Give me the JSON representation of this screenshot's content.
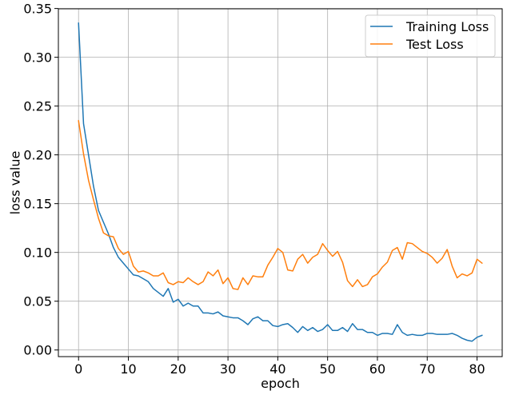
{
  "chart_data": {
    "type": "line",
    "title": "",
    "xlabel": "epoch",
    "ylabel": "loss value",
    "xlim": [
      -4.05,
      85.05
    ],
    "ylim": [
      -0.0068,
      0.3497
    ],
    "xticks": [
      0,
      10,
      20,
      30,
      40,
      50,
      60,
      70,
      80
    ],
    "xtick_labels": [
      "0",
      "10",
      "20",
      "30",
      "40",
      "50",
      "60",
      "70",
      "80"
    ],
    "yticks": [
      0.0,
      0.05,
      0.1,
      0.15,
      0.2,
      0.25,
      0.3,
      0.35
    ],
    "ytick_labels": [
      "0.00",
      "0.05",
      "0.10",
      "0.15",
      "0.20",
      "0.25",
      "0.30",
      "0.35"
    ],
    "grid": true,
    "legend_position": "top-right",
    "x": [
      0,
      1,
      2,
      3,
      4,
      5,
      6,
      7,
      8,
      9,
      10,
      11,
      12,
      13,
      14,
      15,
      16,
      17,
      18,
      19,
      20,
      21,
      22,
      23,
      24,
      25,
      26,
      27,
      28,
      29,
      30,
      31,
      32,
      33,
      34,
      35,
      36,
      37,
      38,
      39,
      40,
      41,
      42,
      43,
      44,
      45,
      46,
      47,
      48,
      49,
      50,
      51,
      52,
      53,
      54,
      55,
      56,
      57,
      58,
      59,
      60,
      61,
      62,
      63,
      64,
      65,
      66,
      67,
      68,
      69,
      70,
      71,
      72,
      73,
      74,
      75,
      76,
      77,
      78,
      79,
      80,
      81
    ],
    "series": [
      {
        "name": "Training Loss",
        "color": "#1f77b4",
        "values": [
          0.335,
          0.232,
          0.2,
          0.168,
          0.143,
          0.131,
          0.119,
          0.105,
          0.095,
          0.089,
          0.083,
          0.077,
          0.076,
          0.073,
          0.07,
          0.063,
          0.059,
          0.055,
          0.063,
          0.049,
          0.052,
          0.045,
          0.048,
          0.045,
          0.045,
          0.038,
          0.038,
          0.037,
          0.039,
          0.035,
          0.034,
          0.033,
          0.033,
          0.03,
          0.026,
          0.032,
          0.034,
          0.03,
          0.03,
          0.025,
          0.024,
          0.026,
          0.027,
          0.023,
          0.018,
          0.024,
          0.02,
          0.023,
          0.019,
          0.021,
          0.026,
          0.02,
          0.02,
          0.023,
          0.019,
          0.027,
          0.021,
          0.021,
          0.018,
          0.018,
          0.015,
          0.017,
          0.017,
          0.016,
          0.026,
          0.018,
          0.015,
          0.016,
          0.015,
          0.015,
          0.017,
          0.017,
          0.016,
          0.016,
          0.016,
          0.017,
          0.015,
          0.012,
          0.01,
          0.009,
          0.013,
          0.015
        ]
      },
      {
        "name": "Test Loss",
        "color": "#ff7f0e",
        "values": [
          0.235,
          0.201,
          0.174,
          0.154,
          0.135,
          0.12,
          0.117,
          0.116,
          0.104,
          0.098,
          0.101,
          0.086,
          0.08,
          0.081,
          0.079,
          0.076,
          0.076,
          0.079,
          0.069,
          0.067,
          0.07,
          0.069,
          0.074,
          0.07,
          0.067,
          0.07,
          0.08,
          0.076,
          0.082,
          0.068,
          0.074,
          0.063,
          0.062,
          0.074,
          0.067,
          0.076,
          0.075,
          0.075,
          0.087,
          0.095,
          0.104,
          0.1,
          0.082,
          0.081,
          0.093,
          0.098,
          0.089,
          0.095,
          0.098,
          0.109,
          0.102,
          0.096,
          0.101,
          0.09,
          0.071,
          0.065,
          0.072,
          0.065,
          0.067,
          0.075,
          0.078,
          0.085,
          0.09,
          0.102,
          0.105,
          0.093,
          0.11,
          0.109,
          0.105,
          0.101,
          0.099,
          0.095,
          0.089,
          0.094,
          0.103,
          0.086,
          0.074,
          0.078,
          0.076,
          0.079,
          0.093,
          0.089
        ]
      }
    ]
  }
}
